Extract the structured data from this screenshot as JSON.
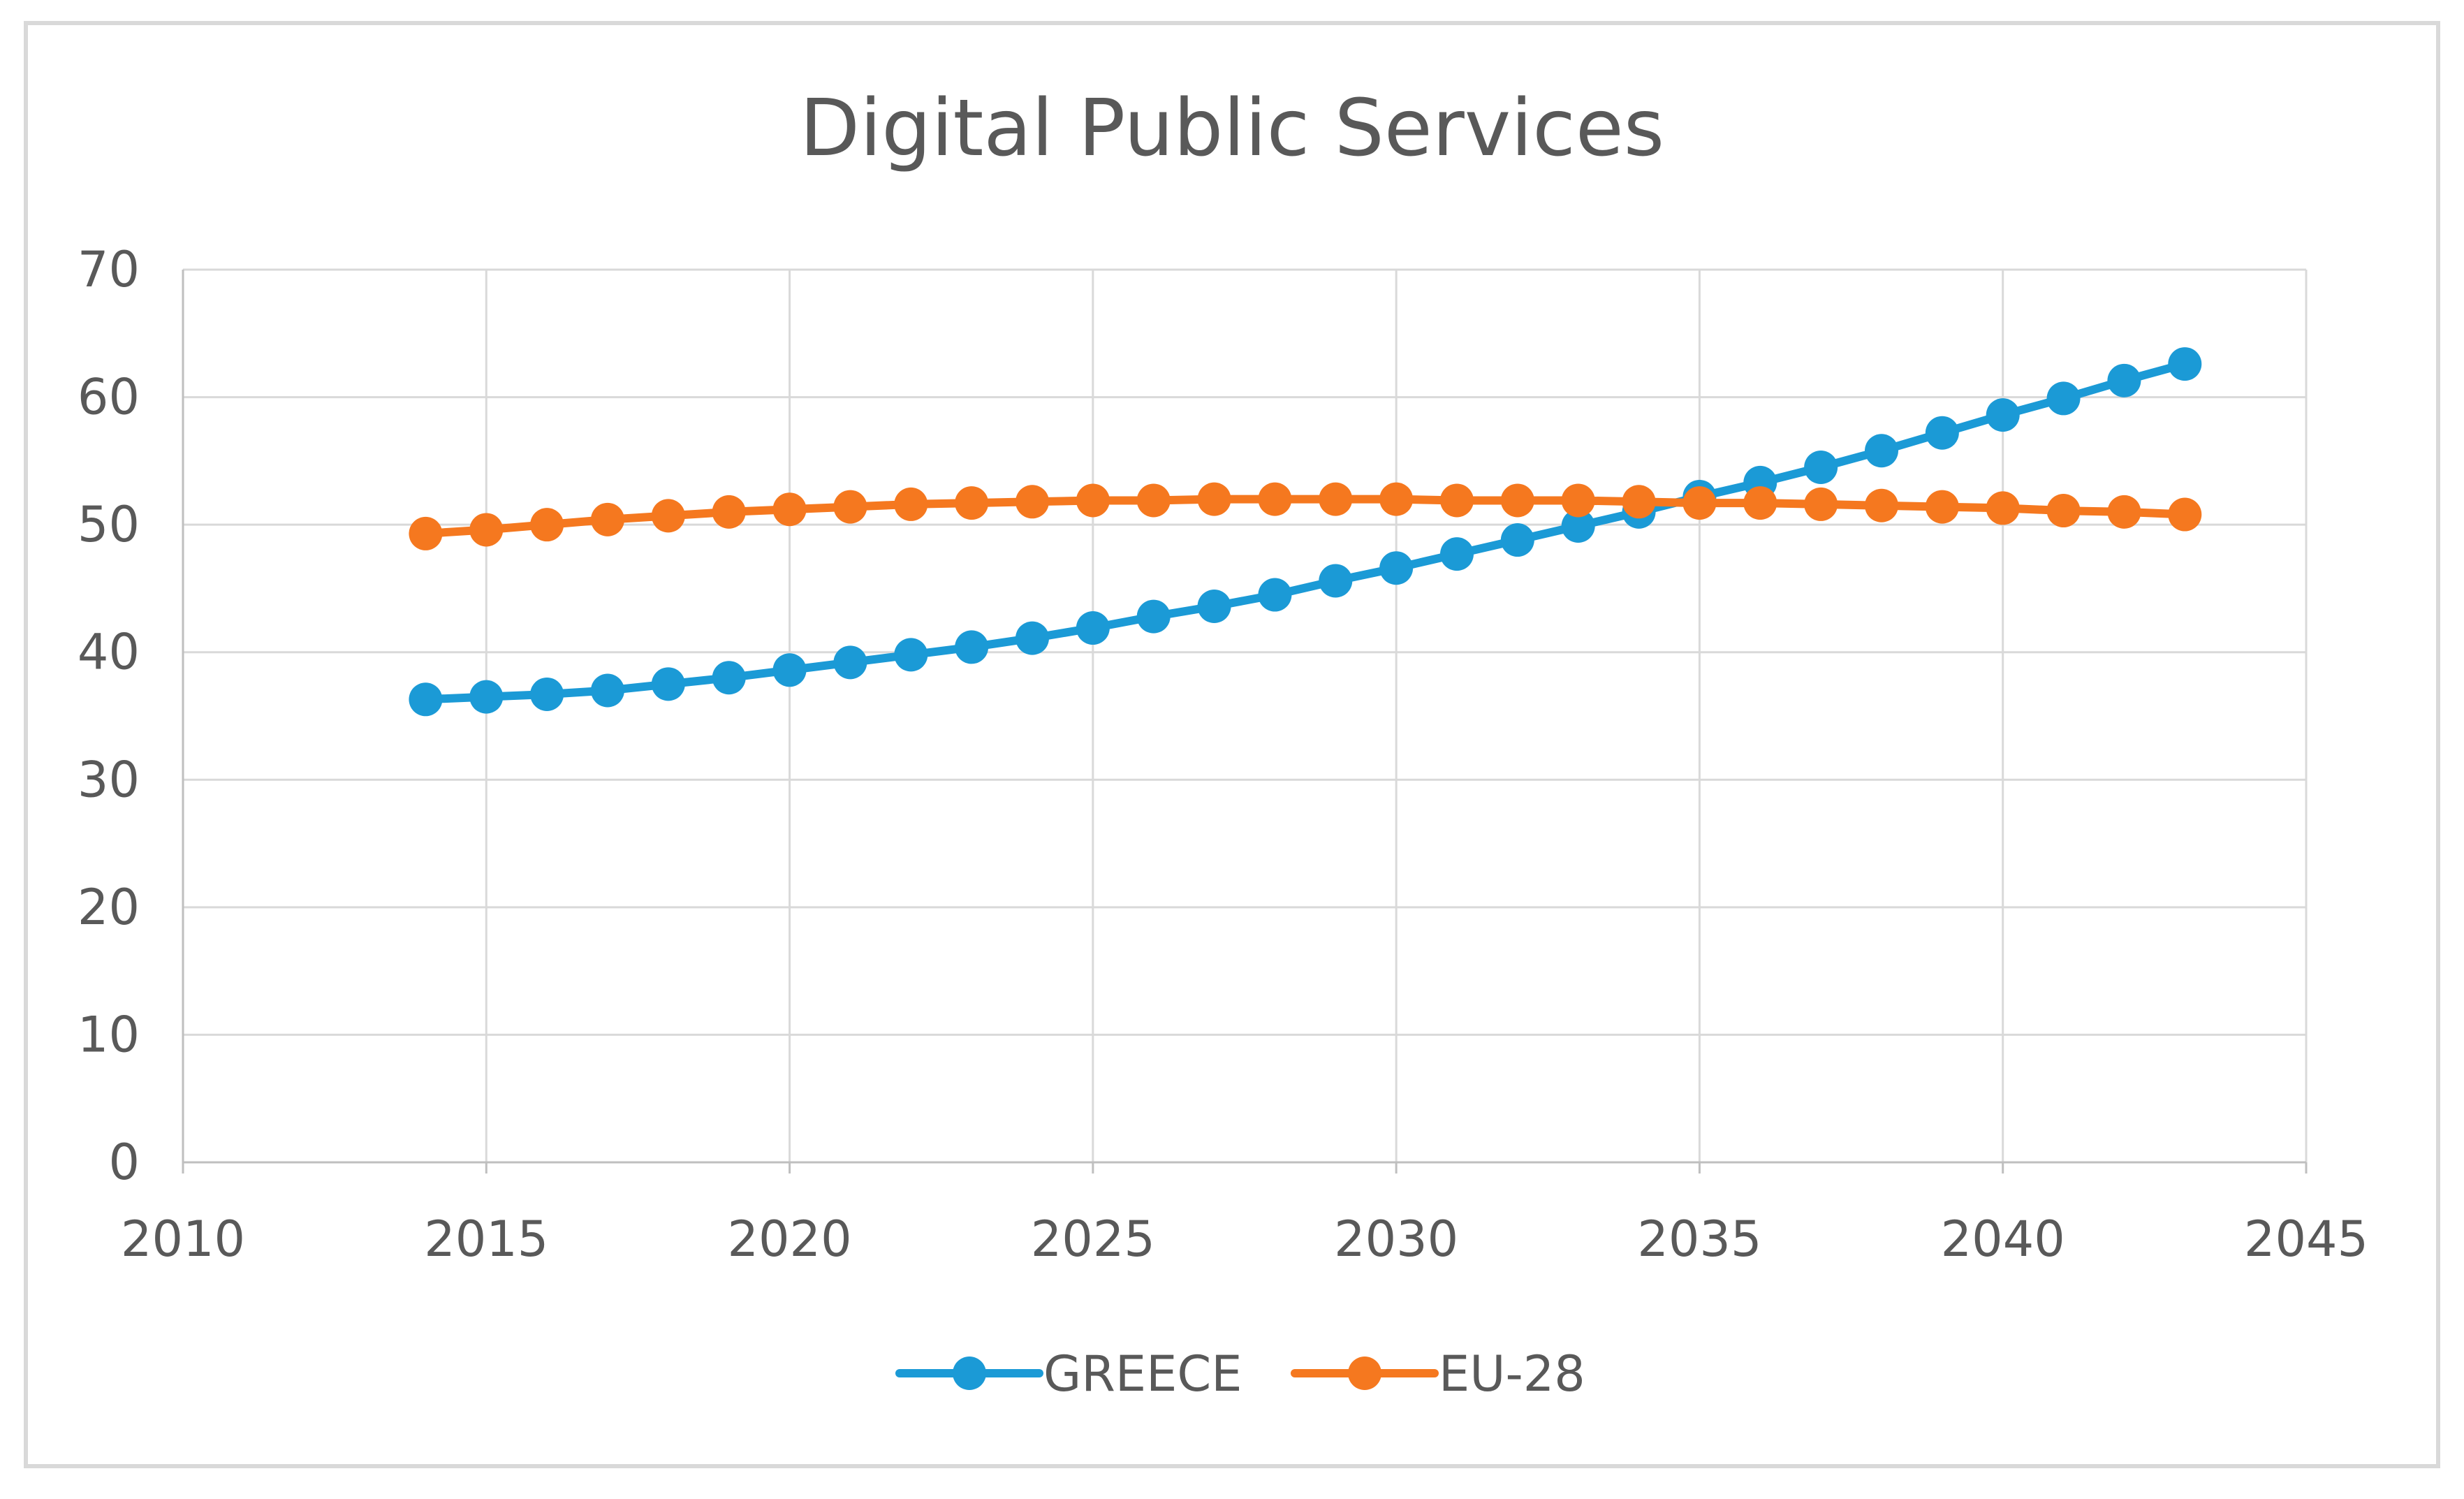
{
  "chart_data": {
    "type": "line",
    "title": "Digital Public Services",
    "xlabel": "",
    "ylabel": "",
    "xlim": [
      2010,
      2045
    ],
    "ylim": [
      0,
      70
    ],
    "x_ticks": [
      2010,
      2015,
      2020,
      2025,
      2030,
      2035,
      2040,
      2045
    ],
    "y_ticks": [
      0,
      10,
      20,
      30,
      40,
      50,
      60,
      70
    ],
    "grid": true,
    "legend_position": "bottom",
    "x": [
      2014,
      2015,
      2016,
      2017,
      2018,
      2019,
      2020,
      2021,
      2022,
      2023,
      2024,
      2025,
      2026,
      2027,
      2028,
      2029,
      2030,
      2031,
      2032,
      2033,
      2034,
      2035,
      2036,
      2037,
      2038,
      2039,
      2040,
      2041,
      2042,
      2043
    ],
    "series": [
      {
        "name": "GREECE",
        "color": "#1b9ad6",
        "values": [
          36.3,
          36.5,
          36.7,
          37.0,
          37.5,
          38.0,
          38.6,
          39.2,
          39.8,
          40.4,
          41.1,
          41.9,
          42.8,
          43.6,
          44.5,
          45.6,
          46.6,
          47.7,
          48.8,
          49.9,
          51.0,
          52.2,
          53.3,
          54.5,
          55.8,
          57.2,
          58.6,
          59.9,
          61.3,
          62.6
        ]
      },
      {
        "name": "EU-28",
        "color": "#f5781f",
        "values": [
          49.3,
          49.6,
          50.0,
          50.4,
          50.7,
          51.0,
          51.2,
          51.4,
          51.6,
          51.7,
          51.8,
          51.9,
          51.9,
          52.0,
          52.0,
          52.0,
          52.0,
          51.9,
          51.9,
          51.9,
          51.8,
          51.7,
          51.7,
          51.6,
          51.5,
          51.4,
          51.3,
          51.1,
          51.0,
          50.8
        ]
      }
    ]
  }
}
